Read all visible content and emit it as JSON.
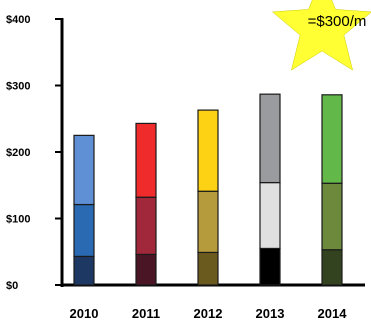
{
  "chart_data": {
    "type": "bar",
    "stacked": true,
    "categories": [
      "2010",
      "2011",
      "2012",
      "2013",
      "2014"
    ],
    "series": [
      {
        "values": [
          43,
          46,
          49,
          55,
          53
        ],
        "colors": [
          "#1e3864",
          "#4a1626",
          "#6b5a1e",
          "#000000",
          "#33431f"
        ]
      },
      {
        "values": [
          78,
          86,
          92,
          99,
          100
        ],
        "colors": [
          "#2a6ab3",
          "#a0283a",
          "#b69b3c",
          "#e0e0e0",
          "#6d8a3c"
        ]
      },
      {
        "values": [
          104,
          111,
          122,
          133,
          133
        ],
        "colors": [
          "#5f8fd4",
          "#ef2b2b",
          "#fdd215",
          "#9a9b9e",
          "#63b84a"
        ]
      }
    ],
    "ylim": [
      0,
      400
    ],
    "yticks": [
      0,
      100,
      200,
      300,
      400
    ],
    "ytick_labels": [
      "$0",
      "$100",
      "$200",
      "$300",
      "$400"
    ],
    "title": "",
    "xlabel": "",
    "ylabel": "",
    "annotation": {
      "text": "=$300/m",
      "shape": "star",
      "color": "#ffff33"
    }
  }
}
